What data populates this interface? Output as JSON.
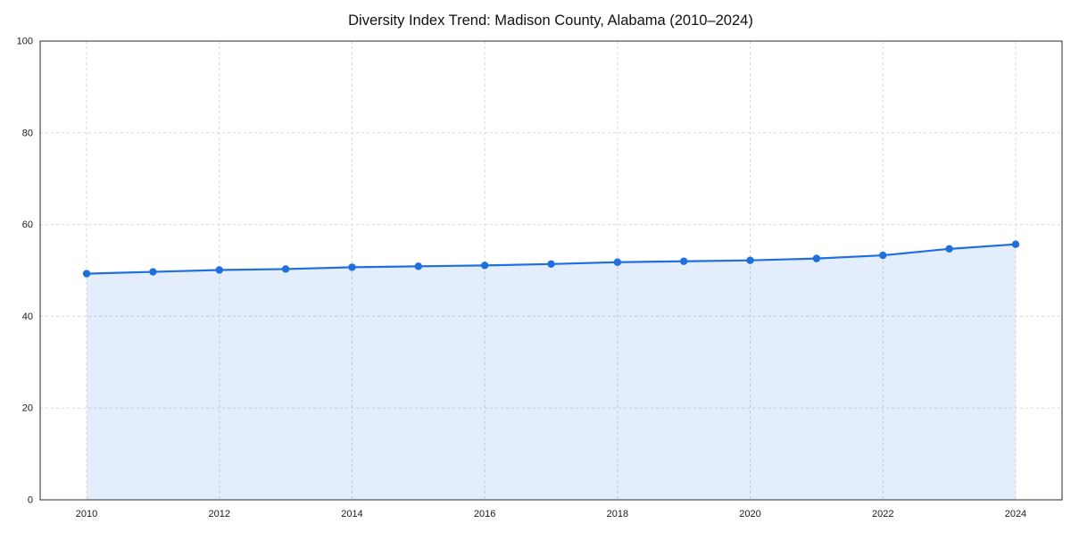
{
  "chart_data": {
    "type": "line",
    "title": "Diversity Index Trend: Madison County, Alabama (2010–2024)",
    "series_name": "Diversity Index",
    "x": [
      2010,
      2011,
      2012,
      2013,
      2014,
      2015,
      2016,
      2017,
      2018,
      2019,
      2020,
      2021,
      2022,
      2023,
      2024
    ],
    "values": [
      49.3,
      49.7,
      50.1,
      50.3,
      50.7,
      50.9,
      51.1,
      51.4,
      51.8,
      52.0,
      52.2,
      52.6,
      53.3,
      54.7,
      55.7
    ],
    "xlim": [
      2009.3,
      2024.7
    ],
    "ylim": [
      0,
      100
    ],
    "xticks": [
      2010,
      2012,
      2014,
      2016,
      2018,
      2020,
      2022,
      2024
    ],
    "yticks": [
      0,
      20,
      40,
      60,
      80,
      100
    ],
    "grid": true,
    "grid_style": "dashed",
    "legend": "none",
    "area_fill": true,
    "marker": "circle",
    "fill_opacity": 0.12,
    "colors": {
      "line": "#1f6fdf",
      "fill": "#1f6fdf",
      "grid": "#d9d9d9",
      "spine": "#2a2a2a",
      "text": "#1a1a1a",
      "background": "#ffffff"
    }
  }
}
